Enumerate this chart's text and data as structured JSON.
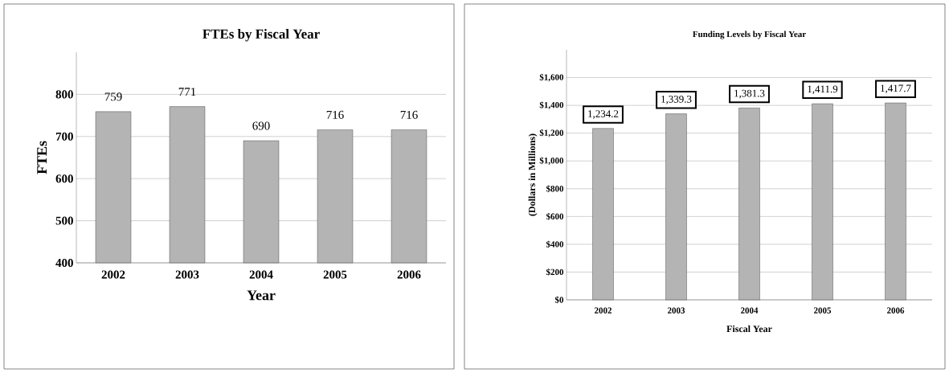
{
  "chart_data": [
    {
      "type": "bar",
      "title": "FTEs by Fiscal Year",
      "xlabel": "Year",
      "ylabel": "FTEs",
      "categories": [
        "2002",
        "2003",
        "2004",
        "2005",
        "2006"
      ],
      "values": [
        759,
        771,
        690,
        716,
        716
      ],
      "color": "#b4b4b4",
      "ylim": [
        400,
        900
      ],
      "yticks": [
        400,
        500,
        600,
        700,
        800
      ],
      "grid": "y",
      "data_labels": true
    },
    {
      "type": "bar",
      "title": "Funding Levels by Fiscal Year",
      "xlabel": "Fiscal Year",
      "ylabel": "(Dollars in Millions)",
      "categories": [
        "2002",
        "2003",
        "2004",
        "2005",
        "2006"
      ],
      "values": [
        1234.2,
        1339.3,
        1381.3,
        1411.9,
        1417.7
      ],
      "value_labels": [
        "1,234.2",
        "1,339.3",
        "1,381.3",
        "1,411.9",
        "1,417.7"
      ],
      "color": "#b4b4b4",
      "ylim": [
        0,
        1800
      ],
      "yticks": [
        {
          "value": 0,
          "label": "$0"
        },
        {
          "value": 200,
          "label": "$200"
        },
        {
          "value": 400,
          "label": "$400"
        },
        {
          "value": 600,
          "label": "$600"
        },
        {
          "value": 800,
          "label": "$800"
        },
        {
          "value": 1000,
          "label": "$1,000"
        },
        {
          "value": 1200,
          "label": "$1,200"
        },
        {
          "value": 1400,
          "label": "$1,400"
        },
        {
          "value": 1600,
          "label": "$1,600"
        }
      ],
      "grid": "y"
    }
  ]
}
